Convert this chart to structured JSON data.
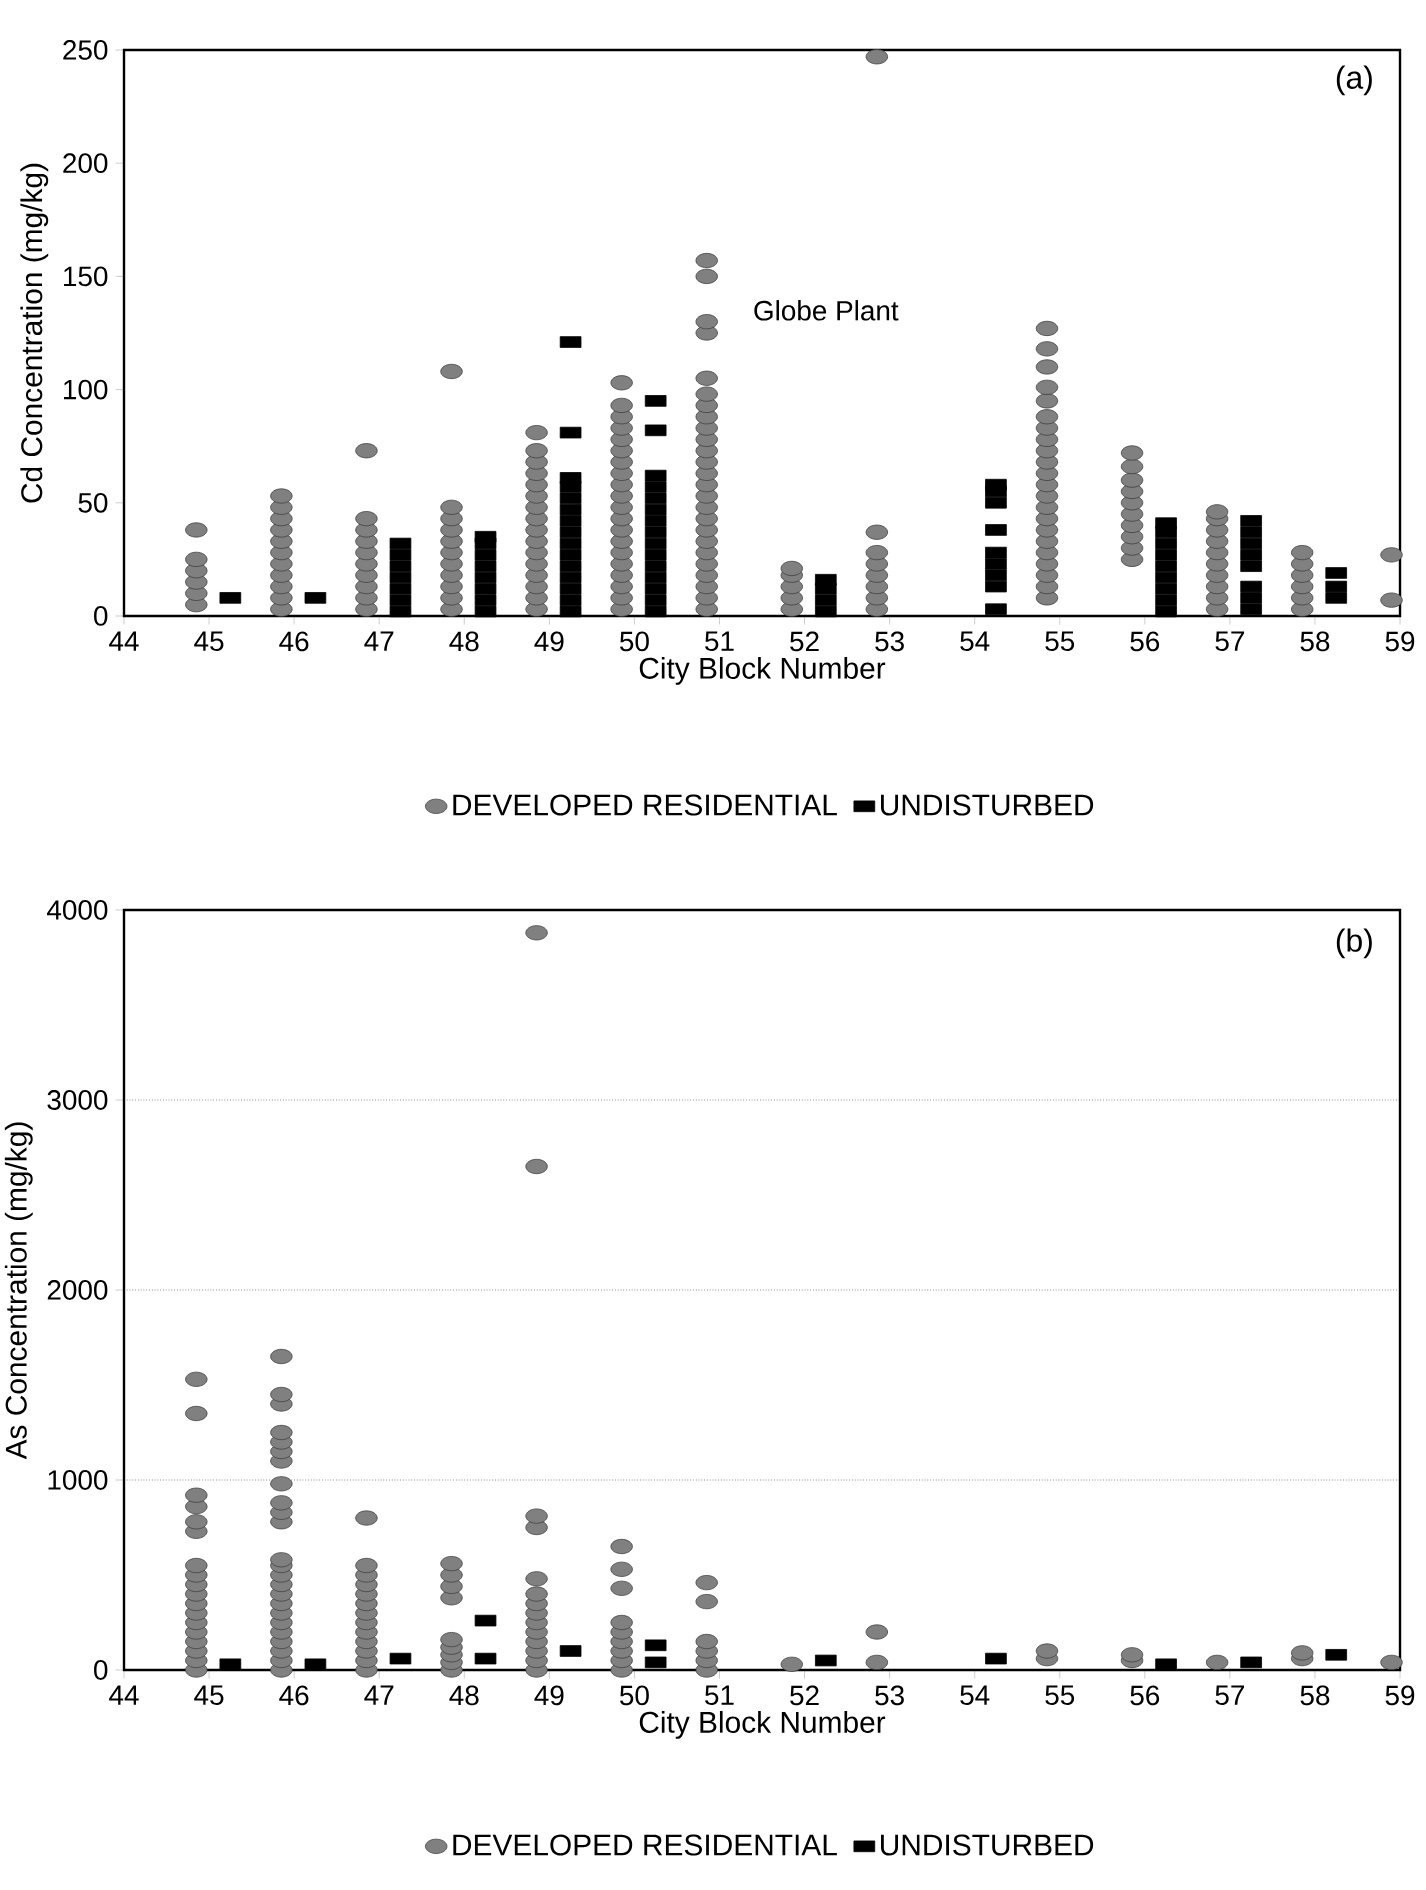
{
  "chart_data": [
    {
      "type": "scatter",
      "xlabel": "City Block Number",
      "ylabel": "Cd Concentration (mg/kg)",
      "xlim": [
        44,
        59
      ],
      "ylim": [
        0,
        250
      ],
      "xticks": [
        44,
        45,
        46,
        47,
        48,
        49,
        50,
        51,
        52,
        53,
        54,
        55,
        56,
        57,
        58,
        59
      ],
      "yticks": [
        0,
        50,
        100,
        150,
        200,
        250
      ],
      "grid": false,
      "legend": "bottom",
      "annotations": [
        "(a)",
        "Globe Plant"
      ],
      "series": [
        {
          "name": "DEVELOPED RESIDENTIAL",
          "color": "#808080",
          "marker": "circle",
          "x": [
            44.85,
            44.85,
            44.85,
            44.85,
            44.85,
            44.85,
            45.85,
            45.85,
            45.85,
            45.85,
            45.85,
            45.85,
            45.85,
            45.85,
            45.85,
            45.85,
            45.85,
            46.85,
            46.85,
            46.85,
            46.85,
            46.85,
            46.85,
            46.85,
            46.85,
            46.85,
            46.85,
            47.85,
            47.85,
            47.85,
            47.85,
            47.85,
            47.85,
            47.85,
            47.85,
            47.85,
            47.85,
            47.85,
            48.85,
            48.85,
            48.85,
            48.85,
            48.85,
            48.85,
            48.85,
            48.85,
            48.85,
            48.85,
            48.85,
            48.85,
            48.85,
            48.85,
            48.85,
            48.85,
            49.85,
            49.85,
            49.85,
            49.85,
            49.85,
            49.85,
            49.85,
            49.85,
            49.85,
            49.85,
            49.85,
            49.85,
            49.85,
            49.85,
            49.85,
            49.85,
            49.85,
            49.85,
            49.85,
            49.85,
            50.85,
            50.85,
            50.85,
            50.85,
            50.85,
            50.85,
            50.85,
            50.85,
            50.85,
            50.85,
            50.85,
            50.85,
            50.85,
            50.85,
            50.85,
            50.85,
            50.85,
            50.85,
            50.85,
            50.85,
            50.85,
            50.85,
            50.85,
            50.85,
            50.85,
            51.85,
            51.85,
            51.85,
            51.85,
            51.85,
            52.85,
            52.85,
            52.85,
            52.85,
            52.85,
            52.85,
            52.85,
            52.85,
            54.85,
            54.85,
            54.85,
            54.85,
            54.85,
            54.85,
            54.85,
            54.85,
            54.85,
            54.85,
            54.85,
            54.85,
            54.85,
            54.85,
            54.85,
            54.85,
            54.85,
            54.85,
            54.85,
            54.85,
            54.85,
            54.85,
            55.85,
            55.85,
            55.85,
            55.85,
            55.85,
            55.85,
            55.85,
            55.85,
            55.85,
            55.85,
            56.85,
            56.85,
            56.85,
            56.85,
            56.85,
            56.85,
            56.85,
            56.85,
            56.85,
            56.85,
            57.85,
            57.85,
            57.85,
            57.85,
            57.85,
            57.85,
            58.9,
            58.9
          ],
          "values": [
            5,
            10,
            15,
            20,
            25,
            38,
            3,
            8,
            13,
            18,
            23,
            28,
            33,
            38,
            43,
            48,
            53,
            3,
            8,
            13,
            18,
            23,
            28,
            33,
            38,
            43,
            73,
            3,
            8,
            13,
            18,
            23,
            28,
            33,
            38,
            43,
            48,
            108,
            3,
            8,
            13,
            18,
            23,
            28,
            33,
            38,
            43,
            48,
            53,
            58,
            63,
            68,
            73,
            81,
            3,
            8,
            13,
            18,
            23,
            28,
            33,
            38,
            43,
            48,
            53,
            58,
            63,
            68,
            73,
            78,
            83,
            88,
            93,
            103,
            3,
            8,
            13,
            18,
            23,
            28,
            33,
            38,
            43,
            48,
            53,
            58,
            63,
            68,
            73,
            78,
            83,
            88,
            93,
            98,
            105,
            125,
            130,
            150,
            157,
            3,
            8,
            13,
            18,
            21,
            3,
            8,
            13,
            18,
            23,
            28,
            37,
            247,
            8,
            13,
            18,
            23,
            28,
            33,
            38,
            43,
            48,
            53,
            58,
            63,
            68,
            73,
            78,
            83,
            88,
            95,
            101,
            110,
            118,
            127,
            25,
            30,
            35,
            40,
            45,
            50,
            55,
            60,
            66,
            72,
            3,
            8,
            13,
            18,
            23,
            28,
            33,
            38,
            43,
            46,
            3,
            8,
            13,
            18,
            23,
            28,
            7,
            27
          ]
        },
        {
          "name": "UNDISTURBED",
          "color": "#000000",
          "marker": "square",
          "x": [
            45.25,
            46.25,
            47.25,
            47.25,
            47.25,
            47.25,
            47.25,
            47.25,
            47.25,
            48.25,
            48.25,
            48.25,
            48.25,
            48.25,
            48.25,
            48.25,
            48.25,
            49.25,
            49.25,
            49.25,
            49.25,
            49.25,
            49.25,
            49.25,
            49.25,
            49.25,
            49.25,
            49.25,
            49.25,
            49.25,
            49.25,
            49.25,
            50.25,
            50.25,
            50.25,
            50.25,
            50.25,
            50.25,
            50.25,
            50.25,
            50.25,
            50.25,
            50.25,
            50.25,
            50.25,
            50.25,
            50.25,
            52.25,
            52.25,
            52.25,
            52.25,
            54.25,
            54.25,
            54.25,
            54.25,
            54.25,
            54.25,
            54.25,
            54.25,
            54.25,
            56.25,
            56.25,
            56.25,
            56.25,
            56.25,
            56.25,
            56.25,
            56.25,
            56.25,
            57.25,
            57.25,
            57.25,
            57.25,
            57.25,
            57.25,
            57.25,
            57.25,
            58.25,
            58.25,
            58.25
          ],
          "values": [
            8,
            8,
            2,
            7,
            12,
            17,
            22,
            27,
            32,
            2,
            7,
            12,
            17,
            22,
            27,
            32,
            35,
            2,
            7,
            12,
            17,
            22,
            27,
            32,
            37,
            42,
            47,
            52,
            57,
            61,
            81,
            121,
            2,
            7,
            12,
            17,
            22,
            27,
            32,
            37,
            42,
            47,
            52,
            57,
            62,
            82,
            95,
            2,
            7,
            12,
            16,
            3,
            13,
            18,
            23,
            28,
            38,
            50,
            55,
            58,
            2,
            7,
            12,
            17,
            22,
            27,
            32,
            37,
            41,
            3,
            8,
            13,
            22,
            27,
            32,
            37,
            42,
            8,
            13,
            19
          ]
        }
      ]
    },
    {
      "type": "scatter",
      "xlabel": "City Block Number",
      "ylabel": "As Concentration (mg/kg)",
      "xlim": [
        44,
        59
      ],
      "ylim": [
        0,
        4000
      ],
      "xticks": [
        44,
        45,
        46,
        47,
        48,
        49,
        50,
        51,
        52,
        53,
        54,
        55,
        56,
        57,
        58,
        59
      ],
      "yticks": [
        0,
        1000,
        2000,
        3000,
        4000
      ],
      "grid": "y",
      "legend": "bottom",
      "annotations": [
        "(b)"
      ],
      "series": [
        {
          "name": "DEVELOPED RESIDENTIAL",
          "color": "#808080",
          "marker": "circle",
          "x": [
            44.85,
            44.85,
            44.85,
            44.85,
            44.85,
            44.85,
            44.85,
            44.85,
            44.85,
            44.85,
            44.85,
            44.85,
            44.85,
            44.85,
            44.85,
            44.85,
            44.85,
            44.85,
            45.85,
            45.85,
            45.85,
            45.85,
            45.85,
            45.85,
            45.85,
            45.85,
            45.85,
            45.85,
            45.85,
            45.85,
            45.85,
            45.85,
            45.85,
            45.85,
            45.85,
            45.85,
            45.85,
            45.85,
            45.85,
            45.85,
            45.85,
            45.85,
            46.85,
            46.85,
            46.85,
            46.85,
            46.85,
            46.85,
            46.85,
            46.85,
            46.85,
            46.85,
            46.85,
            46.85,
            46.85,
            47.85,
            47.85,
            47.85,
            47.85,
            47.85,
            47.85,
            47.85,
            47.85,
            47.85,
            48.85,
            48.85,
            48.85,
            48.85,
            48.85,
            48.85,
            48.85,
            48.85,
            48.85,
            48.85,
            48.85,
            48.85,
            48.85,
            48.85,
            49.85,
            49.85,
            49.85,
            49.85,
            49.85,
            49.85,
            49.85,
            49.85,
            49.85,
            50.85,
            50.85,
            50.85,
            50.85,
            50.85,
            50.85,
            51.85,
            52.85,
            52.85,
            54.85,
            54.85,
            55.85,
            55.85,
            56.85,
            57.85,
            57.85,
            58.9
          ],
          "values": [
            0,
            50,
            100,
            150,
            200,
            250,
            300,
            350,
            400,
            450,
            500,
            550,
            730,
            780,
            860,
            920,
            1350,
            1530,
            0,
            50,
            100,
            150,
            200,
            250,
            300,
            350,
            400,
            450,
            500,
            550,
            580,
            780,
            830,
            880,
            980,
            1100,
            1150,
            1200,
            1250,
            1400,
            1450,
            1650,
            0,
            50,
            100,
            150,
            200,
            250,
            300,
            350,
            400,
            450,
            500,
            550,
            800,
            0,
            40,
            80,
            120,
            160,
            380,
            440,
            500,
            560,
            0,
            50,
            100,
            150,
            200,
            250,
            300,
            350,
            400,
            480,
            750,
            810,
            2650,
            3880,
            0,
            50,
            100,
            150,
            200,
            250,
            430,
            530,
            650,
            0,
            50,
            100,
            150,
            360,
            460,
            30,
            40,
            200,
            60,
            100,
            50,
            80,
            40,
            60,
            90,
            40
          ]
        },
        {
          "name": "UNDISTURBED",
          "color": "#000000",
          "marker": "square",
          "x": [
            45.25,
            46.25,
            47.25,
            48.25,
            48.25,
            49.25,
            50.25,
            50.25,
            52.25,
            54.25,
            56.25,
            57.25,
            58.25
          ],
          "values": [
            30,
            30,
            60,
            60,
            260,
            100,
            40,
            130,
            50,
            60,
            30,
            40,
            80
          ]
        }
      ]
    }
  ]
}
